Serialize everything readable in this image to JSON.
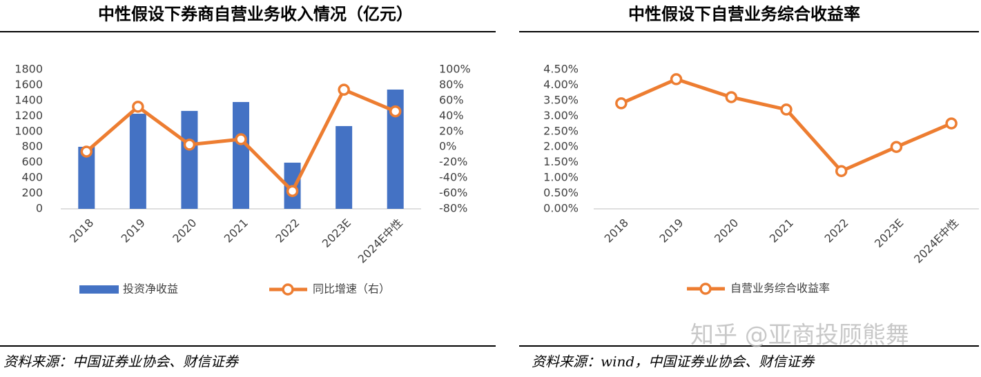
{
  "chart_data": [
    {
      "type": "bar-line",
      "title": "中性假设下券商自营业务收入情况（亿元）",
      "source": "资料来源：中国证券业协会、财信证券",
      "categories": [
        "2018",
        "2019",
        "2020",
        "2021",
        "2022",
        "2023E",
        "2024E中性"
      ],
      "series": [
        {
          "name": "投资净收益",
          "type": "bar",
          "color": "#4472c4",
          "values": [
            802,
            1230,
            1266,
            1381,
            597,
            1070,
            1542
          ]
        },
        {
          "name": "同比增速（右）",
          "type": "line",
          "axis": "y2",
          "color": "#ed7d31",
          "values": [
            -6,
            52,
            3,
            10,
            -57,
            74,
            46
          ]
        }
      ],
      "ylim": [
        0,
        1800
      ],
      "yticks": [
        0,
        200,
        400,
        600,
        800,
        1000,
        1200,
        1400,
        1600,
        1800
      ],
      "y2lim": [
        -80,
        100
      ],
      "y2ticks": [
        {
          "value": -80,
          "label": "-80%"
        },
        {
          "value": -60,
          "label": "-60%"
        },
        {
          "value": -40,
          "label": "-40%"
        },
        {
          "value": -20,
          "label": "-20%"
        },
        {
          "value": 0,
          "label": "0%"
        },
        {
          "value": 20,
          "label": "20%"
        },
        {
          "value": 40,
          "label": "40%"
        },
        {
          "value": 60,
          "label": "60%"
        },
        {
          "value": 80,
          "label": "80%"
        },
        {
          "value": 100,
          "label": "100%"
        }
      ],
      "grid": false,
      "legend": "bottom"
    },
    {
      "type": "line",
      "title": "中性假设下自营业务综合收益率",
      "source": "资料来源：wind，中国证券业协会、财信证券",
      "categories": [
        "2018",
        "2019",
        "2020",
        "2021",
        "2022",
        "2023E",
        "2024E中性"
      ],
      "series": [
        {
          "name": "自营业务综合收益率",
          "type": "line",
          "color": "#ed7d31",
          "values": [
            3.41,
            4.19,
            3.61,
            3.21,
            1.22,
            2.0,
            2.76
          ]
        }
      ],
      "ylim": [
        0,
        4.5
      ],
      "yticks": [
        {
          "value": 0,
          "label": "0.00%"
        },
        {
          "value": 0.5,
          "label": "0.50%"
        },
        {
          "value": 1,
          "label": "1.00%"
        },
        {
          "value": 1.5,
          "label": "1.50%"
        },
        {
          "value": 2,
          "label": "2.00%"
        },
        {
          "value": 2.5,
          "label": "2.50%"
        },
        {
          "value": 3,
          "label": "3.00%"
        },
        {
          "value": 3.5,
          "label": "3.50%"
        },
        {
          "value": 4,
          "label": "4.00%"
        },
        {
          "value": 4.5,
          "label": "4.50%"
        }
      ],
      "grid": false,
      "legend": "bottom"
    }
  ],
  "watermark": "知乎 @亚商投顾熊舞"
}
